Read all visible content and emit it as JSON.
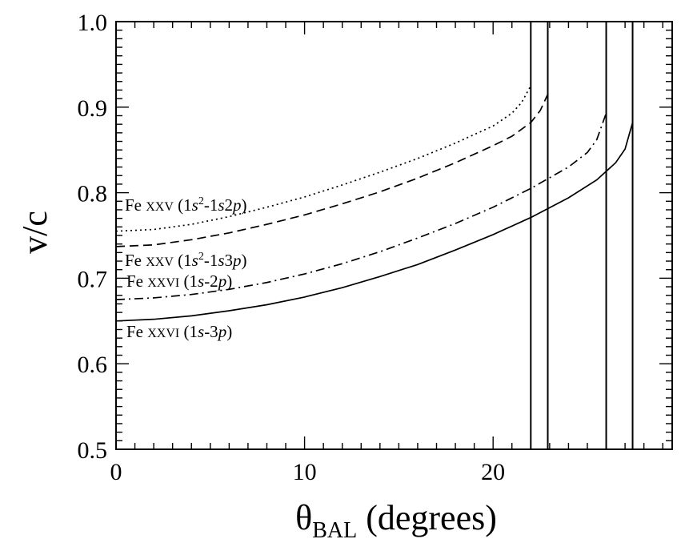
{
  "chart_data": {
    "type": "line",
    "title": "",
    "xlabel_main": "θ",
    "xlabel_sub": "BAL",
    "xlabel_rest": " (degrees)",
    "ylabel": "v/c",
    "xlim": [
      0,
      29.5
    ],
    "ylim": [
      0.5,
      1.0
    ],
    "x_ticks": [
      0,
      10,
      20
    ],
    "x_tick_labels": [
      "0",
      "10",
      "20"
    ],
    "y_ticks": [
      0.5,
      0.6,
      0.7,
      0.8,
      0.9,
      1.0
    ],
    "y_tick_labels": [
      "0.5",
      "0.6",
      "0.7",
      "0.8",
      "0.9",
      "1.0"
    ],
    "grid": false,
    "series": [
      {
        "name": "Fe XXV (1s²-1s2p)",
        "dash": "dotted",
        "x": [
          0,
          2,
          4,
          6,
          8,
          10,
          12,
          14,
          16,
          18,
          19,
          20,
          21,
          21.5,
          22
        ],
        "y": [
          0.755,
          0.757,
          0.763,
          0.772,
          0.783,
          0.795,
          0.809,
          0.824,
          0.84,
          0.858,
          0.868,
          0.878,
          0.893,
          0.905,
          0.925
        ]
      },
      {
        "name": "Fe XXV (1s²-1s3p)",
        "dash": "dashed",
        "x": [
          0,
          2,
          4,
          6,
          8,
          10,
          12,
          14,
          16,
          18,
          20,
          21,
          22,
          22.5,
          22.9
        ],
        "y": [
          0.737,
          0.739,
          0.745,
          0.753,
          0.763,
          0.774,
          0.787,
          0.801,
          0.817,
          0.835,
          0.855,
          0.866,
          0.882,
          0.896,
          0.915
        ]
      },
      {
        "name": "Fe XXVI (1s-2p)",
        "dash": "dashdot",
        "x": [
          0,
          2,
          4,
          6,
          8,
          10,
          12,
          14,
          16,
          18,
          20,
          22,
          24,
          25,
          25.5,
          26
        ],
        "y": [
          0.675,
          0.677,
          0.681,
          0.687,
          0.695,
          0.705,
          0.717,
          0.731,
          0.747,
          0.764,
          0.783,
          0.805,
          0.83,
          0.847,
          0.862,
          0.893
        ]
      },
      {
        "name": "Fe XXVI (1s-3p)",
        "dash": "solid",
        "x": [
          0,
          2,
          4,
          6,
          8,
          10,
          12,
          14,
          16,
          18,
          20,
          22,
          24,
          25.5,
          26.5,
          27,
          27.4
        ],
        "y": [
          0.65,
          0.652,
          0.656,
          0.662,
          0.669,
          0.678,
          0.689,
          0.702,
          0.716,
          0.733,
          0.751,
          0.771,
          0.794,
          0.815,
          0.835,
          0.851,
          0.882
        ]
      }
    ],
    "vertical_lines": [
      22.0,
      22.9,
      26.0,
      27.4
    ],
    "annotations": [
      {
        "ion": "Fe",
        "stage": "XXV",
        "open": " (1",
        "p1": "s",
        "sup": "2",
        "mid": "-1",
        "p2": "s",
        "num": "2",
        "p3": "p",
        "close": ")"
      },
      {
        "ion": "Fe",
        "stage": "XXV",
        "open": " (1",
        "p1": "s",
        "sup": "2",
        "mid": "-1",
        "p2": "s",
        "num": "3",
        "p3": "p",
        "close": ")"
      },
      {
        "ion": "Fe",
        "stage": "XXVI",
        "open": " (1",
        "p1": "s",
        "sup": "",
        "mid": "-2",
        "p2": "",
        "num": "",
        "p3": "p",
        "close": ")"
      },
      {
        "ion": "Fe",
        "stage": "XXVI",
        "open": " (1",
        "p1": "s",
        "sup": "",
        "mid": "-3",
        "p2": "",
        "num": "",
        "p3": "p",
        "close": ")"
      }
    ]
  }
}
